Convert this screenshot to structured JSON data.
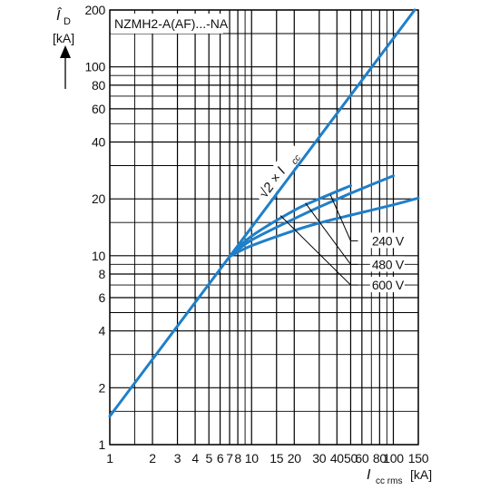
{
  "chart_data": {
    "type": "line",
    "title": "NZMH2-A(AF)...-NA",
    "xscale": "log",
    "yscale": "log",
    "xlim": [
      1,
      150
    ],
    "ylim": [
      1,
      200
    ],
    "grid": true,
    "xlabel": {
      "main": "I",
      "sub": "cc rms",
      "unit": "[kA]"
    },
    "ylabel": {
      "main": "Î",
      "sub": "D",
      "unit": "[kA]"
    },
    "x_ticks": [
      1,
      2,
      3,
      4,
      5,
      6,
      7,
      8,
      10,
      15,
      20,
      30,
      40,
      50,
      60,
      80,
      100,
      150
    ],
    "x_tick_labels": [
      "1",
      "2",
      "3",
      "4",
      "5",
      "6",
      "7",
      "8",
      "10",
      "15",
      "20",
      "30",
      "40",
      "50",
      "60",
      "80",
      "100",
      "150"
    ],
    "y_ticks": [
      1,
      2,
      4,
      6,
      8,
      10,
      20,
      40,
      60,
      80,
      100,
      200
    ],
    "y_tick_labels": [
      "1",
      "2",
      "4",
      "6",
      "8",
      "10",
      "20",
      "40",
      "60",
      "80",
      "100",
      "200"
    ],
    "x_grid": [
      1,
      1.5,
      2,
      3,
      4,
      5,
      6,
      7,
      8,
      9,
      10,
      15,
      20,
      30,
      40,
      50,
      60,
      70,
      80,
      90,
      100,
      150
    ],
    "y_grid": [
      1,
      1.5,
      2,
      3,
      4,
      5,
      6,
      7,
      8,
      9,
      10,
      15,
      20,
      30,
      40,
      50,
      60,
      70,
      80,
      90,
      100,
      150,
      200
    ],
    "series": [
      {
        "name": "√2 × Icc",
        "label_main": "√2 × I",
        "label_sub": "cc",
        "x": [
          1,
          141.4
        ],
        "y": [
          1.414,
          200
        ]
      },
      {
        "name": "240 V",
        "x": [
          7,
          10,
          20,
          30,
          50
        ],
        "y": [
          9.9,
          12.7,
          17.4,
          20,
          23.5
        ]
      },
      {
        "name": "480 V",
        "x": [
          7,
          10,
          20,
          30,
          50,
          100
        ],
        "y": [
          9.9,
          12.1,
          15.7,
          18.1,
          21.4,
          26.5
        ]
      },
      {
        "name": "600 V",
        "x": [
          7,
          10,
          20,
          30,
          50,
          100,
          150
        ],
        "y": [
          9.9,
          11.3,
          13.6,
          14.9,
          16.4,
          18.6,
          20.2
        ]
      }
    ],
    "annotations": [
      {
        "text": "240 V",
        "at": [
          60,
          12
        ]
      },
      {
        "text": "480 V",
        "at": [
          60,
          9
        ]
      },
      {
        "text": "600 V",
        "at": [
          60,
          7
        ]
      }
    ],
    "leaders": [
      {
        "from": [
          36,
          21
        ],
        "to": [
          50,
          12
        ]
      },
      {
        "from": [
          24,
          19
        ],
        "to": [
          50,
          9
        ]
      },
      {
        "from": [
          16,
          16.3
        ],
        "to": [
          50,
          7
        ]
      }
    ],
    "colors": {
      "curve": "#1f7fc9",
      "grid": "#000000"
    }
  }
}
